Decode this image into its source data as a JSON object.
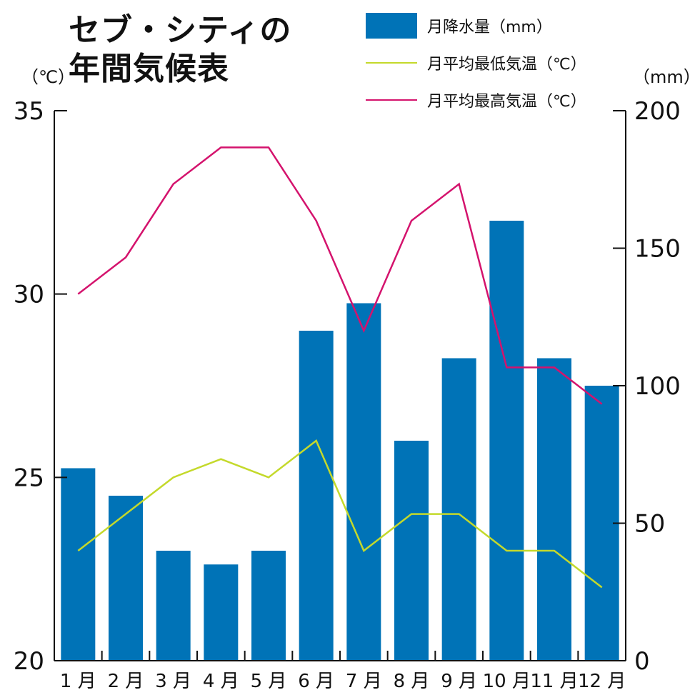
{
  "title_line1": "セブ・シティの",
  "title_line2": "年間気候表",
  "left_unit": "（℃）",
  "right_unit": "（mm）",
  "legend": [
    {
      "label": "月降水量（mm）",
      "kind": "bar",
      "color": "#0073b7"
    },
    {
      "label": "月平均最低気温（℃）",
      "kind": "line",
      "color": "#c4d92b"
    },
    {
      "label": "月平均最高気温（℃）",
      "kind": "line",
      "color": "#d4136d"
    }
  ],
  "chart_data": {
    "type": "bar",
    "categories": [
      "1 月",
      "2 月",
      "3 月",
      "4 月",
      "5 月",
      "6 月",
      "7 月",
      "8 月",
      "9 月",
      "10 月",
      "11 月",
      "12 月"
    ],
    "series": [
      {
        "name": "月降水量（mm）",
        "type": "bar",
        "axis": "right",
        "color": "#0073b7",
        "values": [
          70,
          60,
          40,
          35,
          40,
          120,
          130,
          80,
          110,
          160,
          110,
          100
        ]
      },
      {
        "name": "月平均最低気温（℃）",
        "type": "line",
        "axis": "left",
        "color": "#c4d92b",
        "values": [
          23,
          24,
          25,
          25.5,
          25,
          26,
          23,
          24,
          24,
          23,
          23,
          22
        ]
      },
      {
        "name": "月平均最高気温（℃）",
        "type": "line",
        "axis": "left",
        "color": "#d4136d",
        "values": [
          30,
          31,
          33,
          34,
          34,
          32,
          29,
          32,
          33,
          28,
          28,
          27
        ]
      }
    ],
    "y_left": {
      "range": [
        20,
        35
      ],
      "ticks": [
        20,
        25,
        30,
        35
      ]
    },
    "y_right": {
      "range": [
        0,
        200
      ],
      "ticks": [
        0,
        50,
        100,
        150,
        200
      ]
    },
    "grid": false,
    "legend_position": "top-right"
  }
}
